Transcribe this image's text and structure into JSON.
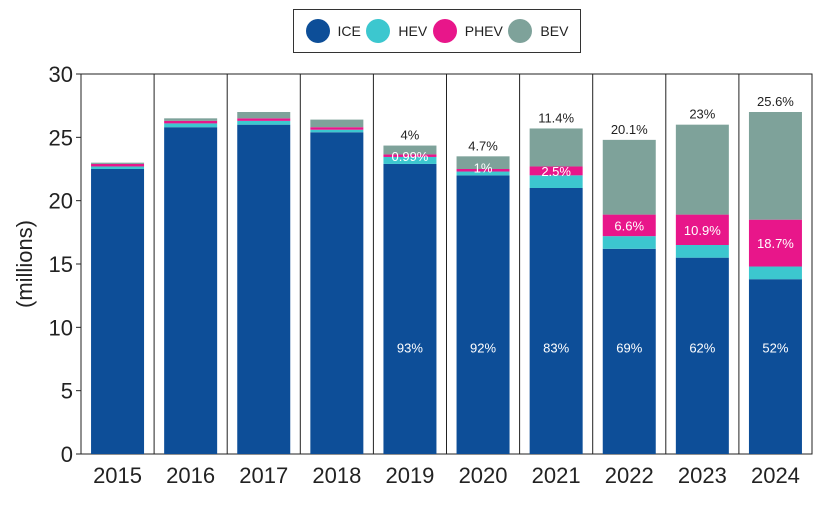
{
  "chart_data": {
    "type": "bar",
    "stacked": true,
    "ylabel": "(millions)",
    "ylim": [
      0,
      30
    ],
    "yticks": [
      0,
      5,
      10,
      15,
      20,
      25,
      30
    ],
    "categories": [
      "2015",
      "2016",
      "2017",
      "2018",
      "2019",
      "2020",
      "2021",
      "2022",
      "2023",
      "2024"
    ],
    "series": [
      {
        "name": "ICE",
        "color": "#0d4e98",
        "values": [
          22.5,
          25.8,
          26.0,
          25.4,
          22.9,
          22.0,
          21.0,
          16.2,
          15.5,
          13.8
        ]
      },
      {
        "name": "HEV",
        "color": "#3cc7cf",
        "values": [
          0.2,
          0.3,
          0.3,
          0.2,
          0.55,
          0.3,
          1.0,
          1.0,
          1.0,
          1.0
        ]
      },
      {
        "name": "PHEV",
        "color": "#e8168a",
        "values": [
          0.2,
          0.2,
          0.2,
          0.2,
          0.2,
          0.2,
          0.7,
          1.7,
          2.4,
          3.7
        ]
      },
      {
        "name": "BEV",
        "color": "#7ea29a",
        "values": [
          0.1,
          0.2,
          0.5,
          0.6,
          0.7,
          1.0,
          3.0,
          5.9,
          7.1,
          8.5
        ]
      }
    ],
    "annotations": {
      "ICE": [
        "",
        "",
        "",
        "",
        "93%",
        "92%",
        "83%",
        "69%",
        "62%",
        "52%"
      ],
      "HEV": [
        "",
        "",
        "",
        "",
        "0.99%",
        "1%",
        "",
        "",
        "",
        ""
      ],
      "PHEV": [
        "",
        "",
        "",
        "",
        "",
        "",
        "2.5%",
        "6.6%",
        "10.9%",
        "18.7%"
      ],
      "BEV": [
        "",
        "",
        "",
        "",
        "4%",
        "4.7%",
        "11.4%",
        "20.1%",
        "23%",
        "25.6%"
      ]
    }
  }
}
